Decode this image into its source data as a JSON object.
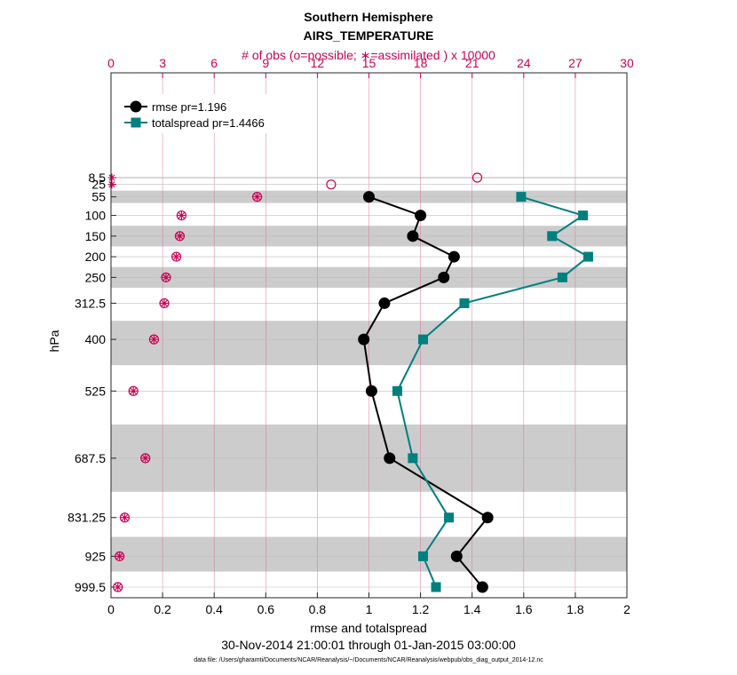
{
  "chart_data": {
    "type": "line",
    "title": "Southern Hemisphere",
    "subtitle": "AIRS_TEMPERATURE",
    "xlabel": "rmse and totalspread",
    "ylabel": "hPa",
    "top_xlabel": "# of obs (o=possible; ∗=assimilated ) x 10000",
    "date_range": "30-Nov-2014 21:00:01 through 01-Jan-2015 03:00:00",
    "footnote": "data file: /Users/gharamti/Documents/NCAR/Reanalysis/~/Documents/NCAR/Reanalysis/webpub/obs_diag_output_2014-12.nc",
    "xlim": [
      0,
      2
    ],
    "top_xlim": [
      0,
      30
    ],
    "x_ticks": [
      "0",
      "0.2",
      "0.4",
      "0.6",
      "0.8",
      "1",
      "1.2",
      "1.4",
      "1.6",
      "1.8",
      "2"
    ],
    "top_ticks": [
      "0",
      "3",
      "6",
      "9",
      "12",
      "15",
      "18",
      "21",
      "24",
      "27",
      "30"
    ],
    "levels": [
      8.5,
      25,
      55,
      100,
      150,
      200,
      250,
      312.5,
      400,
      525,
      687.5,
      831.25,
      925,
      999.5
    ],
    "level_labels": [
      "8.5",
      "25",
      "55",
      "100",
      "150",
      "200",
      "250",
      "312.5",
      "400",
      "525",
      "687.5",
      "831.25",
      "925",
      "999.5"
    ],
    "series": [
      {
        "name": "rmse",
        "legend": "rmse pr=1.196",
        "color": "#000000",
        "marker": "circle",
        "levels": [
          55,
          100,
          150,
          200,
          250,
          312.5,
          400,
          525,
          687.5,
          831.25,
          925,
          999.5
        ],
        "values": [
          1.0,
          1.2,
          1.17,
          1.33,
          1.29,
          1.06,
          0.98,
          1.01,
          1.08,
          1.46,
          1.34,
          1.44
        ]
      },
      {
        "name": "totalspread",
        "legend": "totalspread pr=1.4466",
        "color": "#007f7f",
        "marker": "square",
        "levels": [
          55,
          100,
          150,
          200,
          250,
          312.5,
          400,
          525,
          687.5,
          831.25,
          925,
          999.5
        ],
        "values": [
          1.59,
          1.83,
          1.71,
          1.85,
          1.75,
          1.37,
          1.21,
          1.11,
          1.17,
          1.31,
          1.21,
          1.26
        ]
      }
    ],
    "obs_possible": {
      "color": "#cc0055",
      "levels": [
        8.5,
        25,
        55,
        100,
        150,
        200,
        250,
        312.5,
        400,
        525,
        687.5,
        831.25,
        925,
        999.5
      ],
      "values": [
        21.3,
        12.8,
        8.5,
        4.1,
        4.0,
        3.8,
        3.2,
        3.1,
        2.5,
        1.3,
        2.0,
        0.8,
        0.5,
        0.4
      ]
    },
    "obs_assimilated": {
      "color": "#cc0055",
      "levels": [
        8.5,
        25,
        55,
        100,
        150,
        200,
        250,
        312.5,
        400,
        525,
        687.5,
        831.25,
        925,
        999.5
      ],
      "values": [
        0.05,
        0.05,
        8.5,
        4.1,
        4.0,
        3.8,
        3.2,
        3.1,
        2.5,
        1.3,
        2.0,
        0.8,
        0.5,
        0.4
      ]
    },
    "shaded_level_bands": [
      [
        7,
        10
      ],
      [
        40,
        70
      ],
      [
        125,
        175
      ],
      [
        225,
        275
      ],
      [
        355,
        462.5
      ],
      [
        606,
        769
      ],
      [
        878,
        962
      ]
    ],
    "shade_color": "#cccccc",
    "grid": true,
    "legend_position": "top-left"
  }
}
